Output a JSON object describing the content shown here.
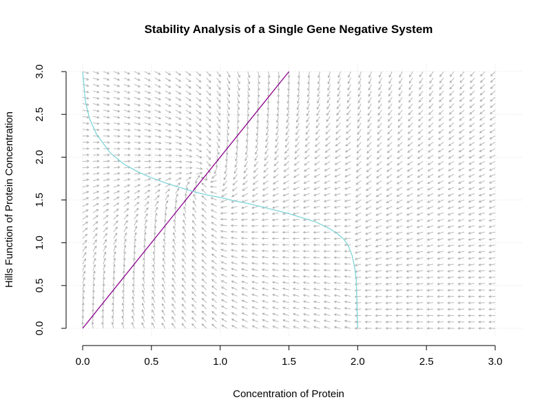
{
  "chart_data": {
    "type": "line",
    "title": "Stability Analysis of a Single Gene Negative System",
    "xlabel": "Concentration of Protein",
    "ylabel": "Hills Function of Protein Concentration",
    "xlim": [
      0,
      3
    ],
    "ylim": [
      0,
      3
    ],
    "x_ticks": [
      "0.0",
      "0.5",
      "1.0",
      "1.5",
      "2.0",
      "2.5",
      "3.0"
    ],
    "y_ticks": [
      "0.0",
      "0.5",
      "1.0",
      "1.5",
      "2.0",
      "2.5",
      "3.0"
    ],
    "grid": true,
    "vector_field": {
      "x_range": [
        0,
        3
      ],
      "y_range": [
        0,
        3
      ],
      "points_per_axis": 41,
      "color": "#b0b0b0",
      "dx_model": "y - 2x (approx.)",
      "dy_model": "f(x) - y (approx.)"
    },
    "series": [
      {
        "color": "#8b008b",
        "x": [
          0,
          1.5
        ],
        "y": [
          0,
          3
        ]
      },
      {
        "color": "#7fd4d8",
        "x": [
          0.0,
          0.02,
          0.05,
          0.1,
          0.2,
          0.3,
          0.4,
          0.5,
          0.6,
          0.7,
          0.8,
          0.9,
          1.0,
          1.1,
          1.2,
          1.3,
          1.4,
          1.5,
          1.6,
          1.7,
          1.8,
          1.85,
          1.9,
          1.93,
          1.96,
          1.98,
          1.99,
          2.0
        ],
        "y": [
          3.0,
          2.65,
          2.45,
          2.27,
          2.05,
          1.92,
          1.83,
          1.76,
          1.7,
          1.65,
          1.6,
          1.56,
          1.53,
          1.49,
          1.46,
          1.42,
          1.38,
          1.34,
          1.29,
          1.24,
          1.16,
          1.11,
          1.04,
          0.97,
          0.85,
          0.7,
          0.55,
          0.0
        ]
      }
    ]
  }
}
